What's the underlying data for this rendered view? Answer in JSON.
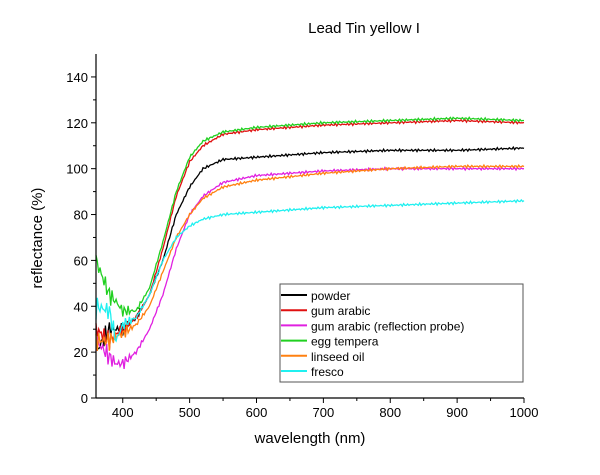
{
  "chart_data": {
    "type": "line",
    "title": "Lead Tin yellow I",
    "xlabel": "wavelength (nm)",
    "ylabel": "reflectance (%)",
    "xlim": [
      360,
      1000
    ],
    "ylim": [
      0,
      150
    ],
    "xticks": [
      400,
      500,
      600,
      700,
      800,
      900,
      1000
    ],
    "yticks": [
      0,
      20,
      40,
      60,
      80,
      100,
      120,
      140
    ],
    "grid": false,
    "legend": "bottom-right",
    "x": [
      360,
      380,
      390,
      400,
      420,
      440,
      460,
      480,
      500,
      520,
      550,
      600,
      700,
      800,
      900,
      1000
    ],
    "series": [
      {
        "name": "powder",
        "color": "#000000",
        "values": [
          20,
          30,
          30,
          30,
          35,
          45,
          60,
          80,
          92,
          100,
          104,
          105,
          107,
          108,
          108,
          109
        ]
      },
      {
        "name": "gum arabic",
        "color": "#e01010",
        "values": [
          30,
          25,
          28,
          30,
          35,
          45,
          65,
          88,
          103,
          110,
          115,
          117,
          119,
          120,
          121,
          120
        ]
      },
      {
        "name": "gum arabic (reflection probe)",
        "color": "#e020e0",
        "values": [
          25,
          18,
          15,
          15,
          20,
          30,
          45,
          65,
          80,
          88,
          94,
          97,
          99,
          100,
          100,
          100
        ]
      },
      {
        "name": "egg tempera",
        "color": "#20d020",
        "values": [
          60,
          45,
          42,
          38,
          38,
          48,
          68,
          90,
          105,
          112,
          116,
          118,
          120,
          121,
          122,
          121
        ]
      },
      {
        "name": "linseed oil",
        "color": "#ff8010",
        "values": [
          25,
          25,
          27,
          28,
          32,
          40,
          55,
          70,
          80,
          87,
          92,
          95,
          98,
          100,
          101,
          101
        ]
      },
      {
        "name": "fresco",
        "color": "#20f0f0",
        "values": [
          40,
          38,
          25,
          32,
          35,
          45,
          60,
          70,
          75,
          78,
          80,
          81,
          83,
          84,
          85,
          86
        ]
      }
    ]
  }
}
